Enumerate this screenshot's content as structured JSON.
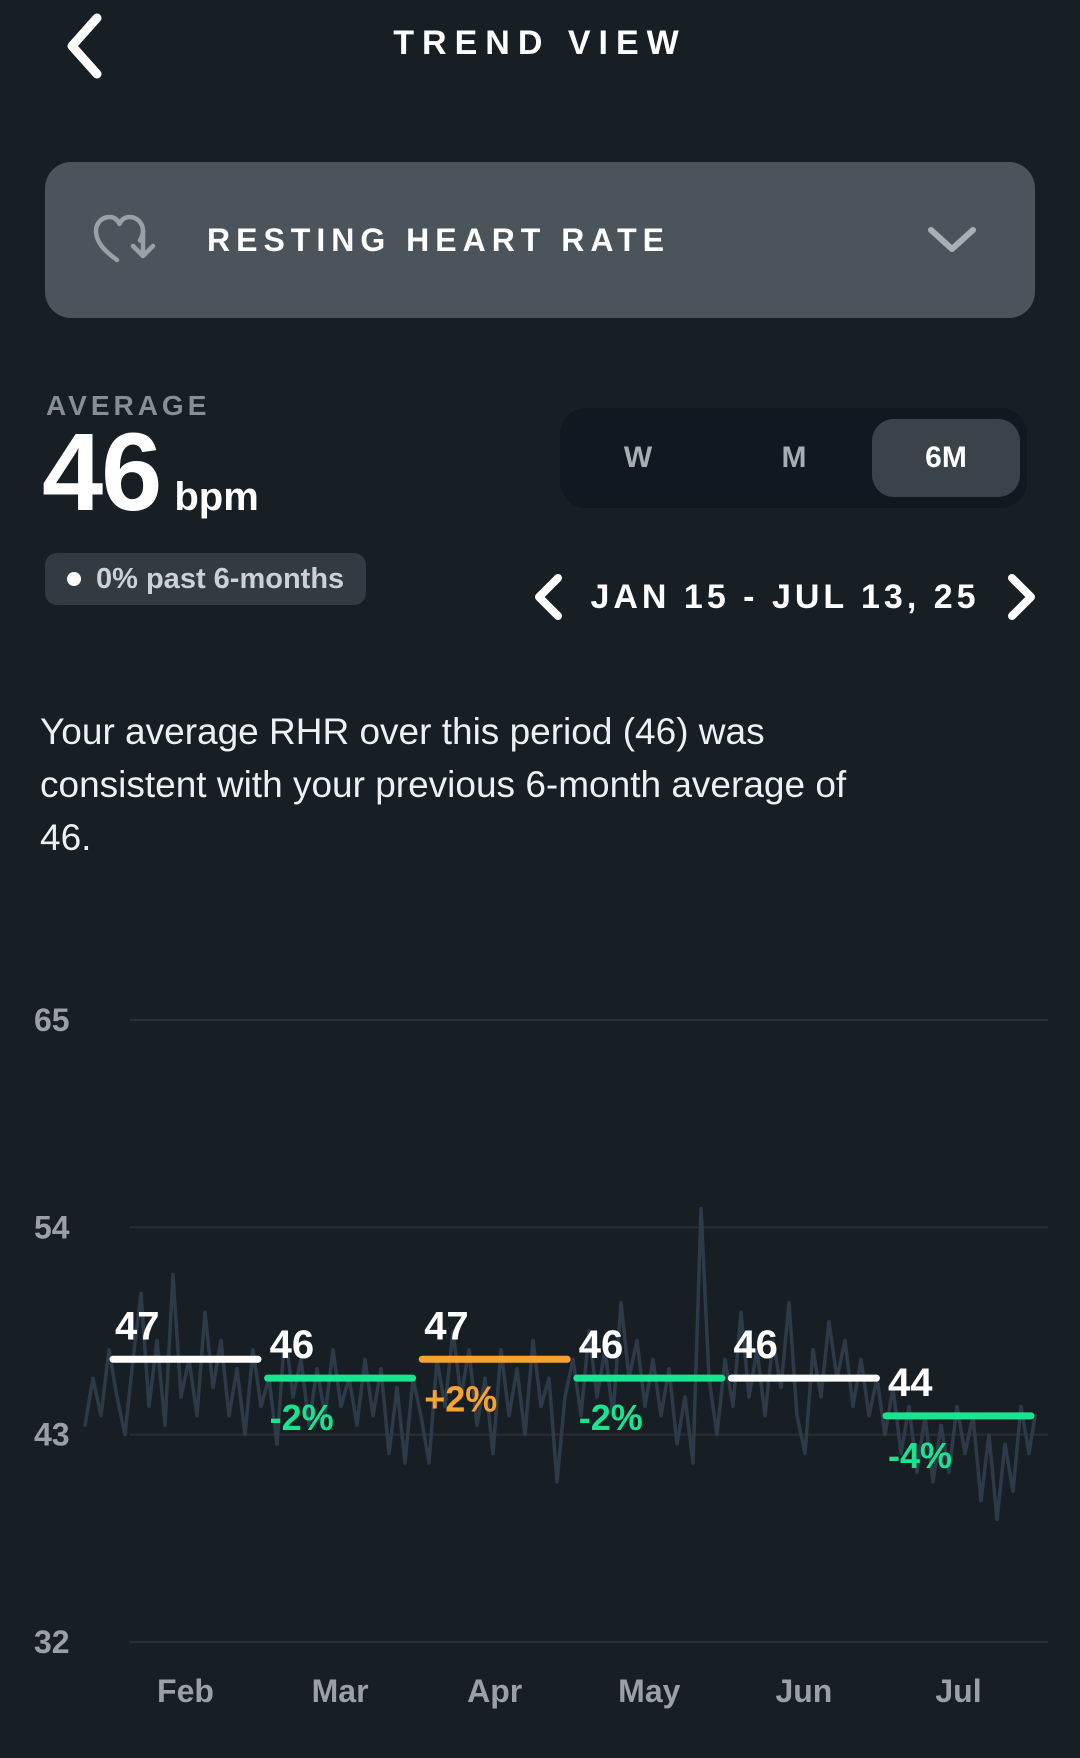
{
  "header": {
    "title": "TREND VIEW"
  },
  "metric_selector": {
    "label": "RESTING HEART RATE"
  },
  "summary": {
    "label": "AVERAGE",
    "value": "46",
    "unit": "bpm",
    "badge": {
      "text": "0% past 6-months"
    }
  },
  "range_tabs": {
    "options": [
      {
        "label": "W",
        "selected": false
      },
      {
        "label": "M",
        "selected": false
      },
      {
        "label": "6M",
        "selected": true
      }
    ]
  },
  "date_nav": {
    "label": "JAN 15 - JUL 13, 25"
  },
  "insight": {
    "text": "Your average RHR over this period (46) was consistent with your previous 6-month average of 46."
  },
  "colors": {
    "background": "#171e24",
    "card": "#4c545b",
    "accent_green": "#19e591",
    "accent_orange": "#f6a32f",
    "white": "#ffffff"
  },
  "chart_data": {
    "type": "line",
    "title": "Resting heart rate trend, Jan 15 - Jul 13, 25",
    "ylabel": "bpm",
    "y_ticks": [
      65,
      54,
      43,
      32
    ],
    "ylim": [
      32,
      65
    ],
    "grid": true,
    "categories": [
      "Feb",
      "Mar",
      "Apr",
      "May",
      "Jun",
      "Jul"
    ],
    "monthly_averages": [
      {
        "month": "Feb",
        "value": 47,
        "change_pct": null,
        "trend": "flat"
      },
      {
        "month": "Mar",
        "value": 46,
        "change_pct": "-2%",
        "trend": "down"
      },
      {
        "month": "Apr",
        "value": 47,
        "change_pct": "+2%",
        "trend": "up"
      },
      {
        "month": "May",
        "value": 46,
        "change_pct": "-2%",
        "trend": "down"
      },
      {
        "month": "Jun",
        "value": 46,
        "change_pct": null,
        "trend": "flat"
      },
      {
        "month": "Jul",
        "value": 44,
        "change_pct": "-4%",
        "trend": "down"
      }
    ],
    "trend_colors": {
      "flat": "#ffffff",
      "down": "#19e591",
      "up": "#f6a32f"
    },
    "daily_line_color": "#2d3b48",
    "grid_color": "rgba(255,255,255,0.08)",
    "axis_label_color": "#9aa0a6",
    "daily_rhr_points": [
      [
        85,
        43.5
      ],
      [
        93,
        46
      ],
      [
        101,
        44
      ],
      [
        109,
        47.5
      ],
      [
        117,
        45
      ],
      [
        125,
        43
      ],
      [
        133,
        47
      ],
      [
        141,
        50.5
      ],
      [
        149,
        44.5
      ],
      [
        157,
        48
      ],
      [
        165,
        43.5
      ],
      [
        173,
        51.5
      ],
      [
        181,
        45
      ],
      [
        189,
        47
      ],
      [
        197,
        44
      ],
      [
        205,
        49.5
      ],
      [
        213,
        45.5
      ],
      [
        221,
        48
      ],
      [
        229,
        44
      ],
      [
        237,
        46.5
      ],
      [
        245,
        43
      ],
      [
        253,
        47.5
      ],
      [
        261,
        44.5
      ],
      [
        269,
        46
      ],
      [
        277,
        42.5
      ],
      [
        285,
        48.5
      ],
      [
        293,
        45
      ],
      [
        301,
        47
      ],
      [
        309,
        43.5
      ],
      [
        317,
        46.5
      ],
      [
        325,
        44
      ],
      [
        333,
        47.5
      ],
      [
        341,
        44.5
      ],
      [
        349,
        46
      ],
      [
        357,
        43.5
      ],
      [
        365,
        47
      ],
      [
        373,
        44
      ],
      [
        381,
        46.5
      ],
      [
        389,
        42
      ],
      [
        397,
        45.5
      ],
      [
        405,
        41.5
      ],
      [
        413,
        46
      ],
      [
        421,
        44
      ],
      [
        429,
        41.5
      ],
      [
        437,
        47
      ],
      [
        445,
        44.5
      ],
      [
        453,
        48.5
      ],
      [
        461,
        45
      ],
      [
        469,
        47.5
      ],
      [
        477,
        43.5
      ],
      [
        485,
        46
      ],
      [
        493,
        42
      ],
      [
        501,
        47.5
      ],
      [
        509,
        44
      ],
      [
        517,
        46.5
      ],
      [
        525,
        43
      ],
      [
        533,
        48
      ],
      [
        541,
        44.5
      ],
      [
        549,
        46
      ],
      [
        557,
        40.5
      ],
      [
        565,
        45
      ],
      [
        573,
        47
      ],
      [
        581,
        44
      ],
      [
        589,
        48.5
      ],
      [
        597,
        45
      ],
      [
        605,
        47.5
      ],
      [
        613,
        44
      ],
      [
        621,
        50
      ],
      [
        629,
        46
      ],
      [
        637,
        48
      ],
      [
        645,
        44.5
      ],
      [
        653,
        47
      ],
      [
        661,
        44
      ],
      [
        669,
        46.5
      ],
      [
        677,
        42.5
      ],
      [
        685,
        45
      ],
      [
        693,
        41.5
      ],
      [
        701,
        55
      ],
      [
        709,
        46
      ],
      [
        717,
        43
      ],
      [
        725,
        47
      ],
      [
        733,
        44.5
      ],
      [
        741,
        49.5
      ],
      [
        749,
        45
      ],
      [
        757,
        47.5
      ],
      [
        765,
        44
      ],
      [
        773,
        48
      ],
      [
        781,
        45.5
      ],
      [
        789,
        50
      ],
      [
        797,
        44
      ],
      [
        805,
        42
      ],
      [
        813,
        47.5
      ],
      [
        821,
        45
      ],
      [
        829,
        49
      ],
      [
        837,
        46
      ],
      [
        845,
        48
      ],
      [
        853,
        44.5
      ],
      [
        861,
        47
      ],
      [
        869,
        44
      ],
      [
        877,
        46
      ],
      [
        885,
        43
      ],
      [
        893,
        45.5
      ],
      [
        901,
        42
      ],
      [
        909,
        44.5
      ],
      [
        917,
        41
      ],
      [
        925,
        44
      ],
      [
        933,
        40.5
      ],
      [
        941,
        43.5
      ],
      [
        949,
        41
      ],
      [
        957,
        44.5
      ],
      [
        965,
        42
      ],
      [
        973,
        44
      ],
      [
        981,
        39.5
      ],
      [
        989,
        43
      ],
      [
        997,
        38.5
      ],
      [
        1005,
        42.5
      ],
      [
        1013,
        40
      ],
      [
        1021,
        44.5
      ],
      [
        1029,
        42
      ],
      [
        1035,
        44
      ]
    ]
  }
}
